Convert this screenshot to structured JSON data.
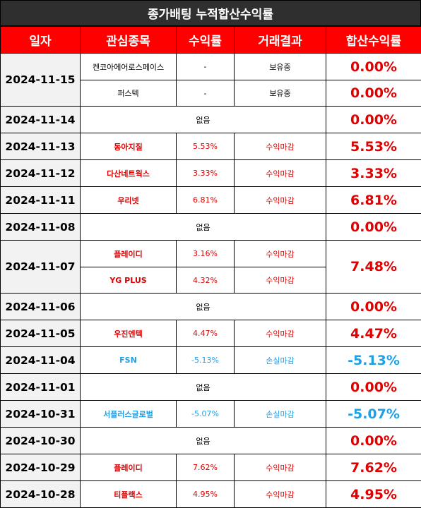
{
  "title": "종가배팅 누적합산수익률",
  "headers": [
    "일자",
    "관심종목",
    "수익률",
    "거래결과",
    "합산수익률"
  ],
  "rows": [
    {
      "date": "2024-11-15",
      "stocks": [
        {
          "name": "켄코아에어로스페이스",
          "rate": "-",
          "result": "보유중",
          "total": "0.00%"
        },
        {
          "name": "퍼스텍",
          "rate": "-",
          "result": "보유중",
          "total": "0.00%"
        }
      ]
    },
    {
      "date": "2024-11-14",
      "none": "없음",
      "total": "0.00%"
    },
    {
      "date": "2024-11-13",
      "stocks": [
        {
          "name": "동아지질",
          "rate": "5.53%",
          "result": "수익마감"
        }
      ],
      "total": "5.53%"
    },
    {
      "date": "2024-11-12",
      "stocks": [
        {
          "name": "다산네트웍스",
          "rate": "3.33%",
          "result": "수익마감"
        }
      ],
      "total": "3.33%"
    },
    {
      "date": "2024-11-11",
      "stocks": [
        {
          "name": "우리넷",
          "rate": "6.81%",
          "result": "수익마감"
        }
      ],
      "total": "6.81%"
    },
    {
      "date": "2024-11-08",
      "none": "없음",
      "total": "0.00%"
    },
    {
      "date": "2024-11-07",
      "stocks": [
        {
          "name": "플레이디",
          "rate": "3.16%",
          "result": "수익마감"
        },
        {
          "name": "YG PLUS",
          "rate": "4.32%",
          "result": "수익마감"
        }
      ],
      "total": "7.48%"
    },
    {
      "date": "2024-11-06",
      "none": "없음",
      "total": "0.00%"
    },
    {
      "date": "2024-11-05",
      "stocks": [
        {
          "name": "우진엔텍",
          "rate": "4.47%",
          "result": "수익마감"
        }
      ],
      "total": "4.47%"
    },
    {
      "date": "2024-11-04",
      "stocks": [
        {
          "name": "FSN",
          "rate": "-5.13%",
          "result": "손실마감"
        }
      ],
      "total": "-5.13%"
    },
    {
      "date": "2024-11-01",
      "none": "없음",
      "total": "0.00%"
    },
    {
      "date": "2024-10-31",
      "stocks": [
        {
          "name": "서플러스글로벌",
          "rate": "-5.07%",
          "result": "손실마감"
        }
      ],
      "total": "-5.07%"
    },
    {
      "date": "2024-10-30",
      "none": "없음",
      "total": "0.00%"
    },
    {
      "date": "2024-10-29",
      "stocks": [
        {
          "name": "플레이디",
          "rate": "7.62%",
          "result": "수익마감"
        }
      ],
      "total": "7.62%"
    },
    {
      "date": "2024-10-28",
      "stocks": [
        {
          "name": "티플랙스",
          "rate": "4.95%",
          "result": "수익마감"
        }
      ],
      "total": "4.95%"
    }
  ],
  "colors": {
    "header_bg": "#ff0000",
    "title_bg": "#2f2f2f",
    "gain": "#e00000",
    "loss": "#1fa0e6",
    "date_bg": "#f2f2f2"
  }
}
